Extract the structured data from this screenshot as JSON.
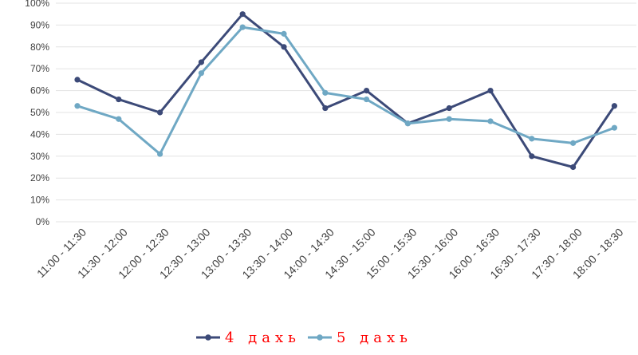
{
  "chart_data": {
    "type": "line",
    "categories": [
      "11:00 - 11:30",
      "11:30 - 12:00",
      "12:00 - 12:30",
      "12:30 - 13:00",
      "13:00 - 13:30",
      "13:30 - 14:00",
      "14:00 - 14:30",
      "14:30 - 15:00",
      "15:00 - 15:30",
      "15:30 - 16:00",
      "16:00 - 16:30",
      "16:30 - 17:30",
      "17:30 - 18:00",
      "18:00 - 18:30"
    ],
    "series": [
      {
        "name": "4 дахь",
        "color": "#3c4a78",
        "values": [
          65,
          56,
          50,
          73,
          95,
          80,
          52,
          60,
          45,
          52,
          60,
          30,
          25,
          53
        ]
      },
      {
        "name": "5 дахь",
        "color": "#6fa8c4",
        "values": [
          53,
          47,
          31,
          68,
          89,
          86,
          59,
          56,
          45,
          47,
          46,
          38,
          36,
          43
        ]
      }
    ],
    "y_ticks": [
      "0%",
      "10%",
      "20%",
      "30%",
      "40%",
      "50%",
      "60%",
      "70%",
      "80%",
      "90%",
      "100%"
    ],
    "ylim": [
      0,
      100
    ],
    "grid": true,
    "legend": "bottom-center"
  }
}
